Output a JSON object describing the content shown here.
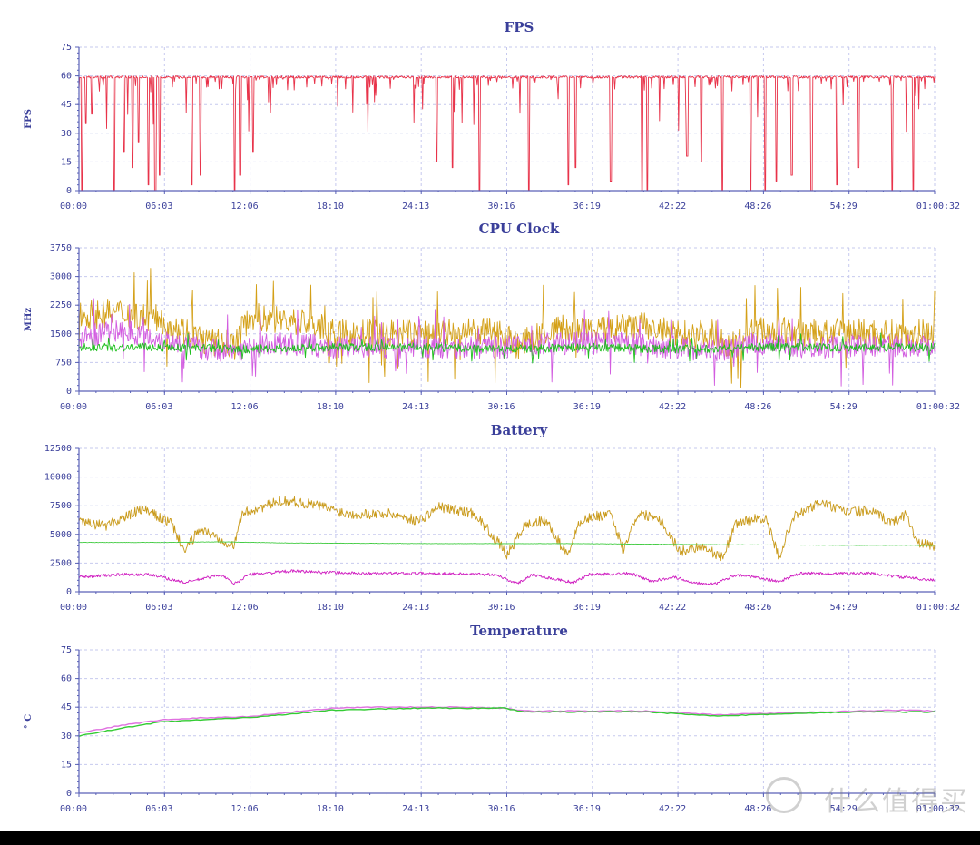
{
  "chart_data": [
    {
      "type": "line",
      "title": "FPS",
      "ylabel": "FPS",
      "ylim": [
        0,
        75
      ],
      "yticks": [
        "0",
        "15",
        "30",
        "45",
        "60",
        "75"
      ],
      "xticks": [
        "00:00",
        "06:03",
        "12:06",
        "18:10",
        "24:13",
        "30:16",
        "36:19",
        "42:22",
        "48:26",
        "54:29",
        "01:00:32"
      ],
      "grid": true,
      "series": [
        {
          "color": "#e8334a",
          "baseline": 60,
          "dips": [
            {
              "t": 0.2,
              "v": 0
            },
            {
              "t": 0.5,
              "v": 35
            },
            {
              "t": 0.9,
              "v": 40
            },
            {
              "t": 2.5,
              "v": 0
            },
            {
              "t": 3.2,
              "v": 20
            },
            {
              "t": 3.8,
              "v": 12
            },
            {
              "t": 4.2,
              "v": 25
            },
            {
              "t": 4.9,
              "v": 3
            },
            {
              "t": 5.4,
              "v": 0
            },
            {
              "t": 5.7,
              "v": 8
            },
            {
              "t": 8.0,
              "v": 3
            },
            {
              "t": 8.6,
              "v": 8
            },
            {
              "t": 11.0,
              "v": 0
            },
            {
              "t": 11.4,
              "v": 8
            },
            {
              "t": 12.3,
              "v": 20
            },
            {
              "t": 25.3,
              "v": 15
            },
            {
              "t": 26.4,
              "v": 12
            },
            {
              "t": 28.3,
              "v": 0
            },
            {
              "t": 31.8,
              "v": 0
            },
            {
              "t": 34.6,
              "v": 3
            },
            {
              "t": 35.1,
              "v": 12
            },
            {
              "t": 37.6,
              "v": 5
            },
            {
              "t": 39.8,
              "v": 0
            },
            {
              "t": 40.2,
              "v": 0
            },
            {
              "t": 43.0,
              "v": 18
            },
            {
              "t": 44.0,
              "v": 15
            },
            {
              "t": 45.5,
              "v": 0
            },
            {
              "t": 47.5,
              "v": 0
            },
            {
              "t": 48.5,
              "v": 0
            },
            {
              "t": 49.3,
              "v": 5
            },
            {
              "t": 50.4,
              "v": 8
            },
            {
              "t": 51.8,
              "v": 0
            },
            {
              "t": 53.6,
              "v": 3
            },
            {
              "t": 55.1,
              "v": 12
            },
            {
              "t": 57.5,
              "v": 0
            },
            {
              "t": 59.0,
              "v": 0
            }
          ]
        }
      ]
    },
    {
      "type": "line",
      "title": "CPU Clock",
      "ylabel": "MHz",
      "ylim": [
        0,
        3750
      ],
      "yticks": [
        "0",
        "750",
        "1500",
        "2250",
        "3000",
        "3750"
      ],
      "xticks": [
        "00:00",
        "06:03",
        "12:06",
        "18:10",
        "24:13",
        "30:16",
        "36:19",
        "42:22",
        "48:26",
        "54:29",
        "01:00:32"
      ],
      "grid": true,
      "series": [
        {
          "color": "#d4a017",
          "points": [
            [
              0,
              2000
            ],
            [
              3,
              2050
            ],
            [
              6,
              1850
            ],
            [
              9,
              1300
            ],
            [
              11,
              1200
            ],
            [
              12,
              1950
            ],
            [
              16,
              1800
            ],
            [
              18,
              1500
            ],
            [
              24,
              1500
            ],
            [
              30,
              1550
            ],
            [
              31,
              1200
            ],
            [
              34,
              1650
            ],
            [
              36,
              1550
            ],
            [
              40,
              1700
            ],
            [
              42,
              1500
            ],
            [
              45,
              1500
            ],
            [
              46,
              1200
            ],
            [
              48,
              1600
            ],
            [
              52,
              1500
            ],
            [
              55,
              1550
            ],
            [
              58,
              1500
            ],
            [
              60.5,
              1550
            ]
          ]
        },
        {
          "color": "#d25ce0",
          "points": [
            [
              0,
              1400
            ],
            [
              3,
              1600
            ],
            [
              6,
              1350
            ],
            [
              9,
              1100
            ],
            [
              11,
              1050
            ],
            [
              14,
              1250
            ],
            [
              18,
              1150
            ],
            [
              24,
              1150
            ],
            [
              30,
              1150
            ],
            [
              34,
              1250
            ],
            [
              38,
              1250
            ],
            [
              42,
              1150
            ],
            [
              45,
              1050
            ],
            [
              48,
              1250
            ],
            [
              52,
              1150
            ],
            [
              56,
              1200
            ],
            [
              60.5,
              1200
            ]
          ]
        },
        {
          "color": "#1fbf1f",
          "points": [
            [
              0,
              1150
            ],
            [
              6,
              1150
            ],
            [
              12,
              1100
            ],
            [
              18,
              1150
            ],
            [
              24,
              1150
            ],
            [
              30,
              1100
            ],
            [
              36,
              1150
            ],
            [
              42,
              1100
            ],
            [
              48,
              1150
            ],
            [
              54,
              1150
            ],
            [
              60.5,
              1150
            ]
          ]
        }
      ]
    },
    {
      "type": "line",
      "title": "Battery",
      "ylabel": "",
      "ylim": [
        0,
        12500
      ],
      "yticks": [
        "0",
        "2500",
        "5000",
        "7500",
        "10000",
        "12500"
      ],
      "xticks": [
        "00:00",
        "06:03",
        "12:06",
        "18:10",
        "24:13",
        "30:16",
        "36:19",
        "42:22",
        "48:26",
        "54:29",
        "01:00:32"
      ],
      "grid": true,
      "series": [
        {
          "color": "#c99a1a",
          "points": [
            [
              0,
              6000
            ],
            [
              2,
              5800
            ],
            [
              4.5,
              7200
            ],
            [
              6.5,
              6000
            ],
            [
              7.5,
              3500
            ],
            [
              8.5,
              5500
            ],
            [
              11,
              4000
            ],
            [
              11.5,
              6800
            ],
            [
              14.5,
              8000
            ],
            [
              17,
              7500
            ],
            [
              19,
              6800
            ],
            [
              22,
              6800
            ],
            [
              24,
              6200
            ],
            [
              25.5,
              7400
            ],
            [
              28,
              6800
            ],
            [
              29.5,
              4500
            ],
            [
              30.3,
              3200
            ],
            [
              31.5,
              5800
            ],
            [
              33,
              6200
            ],
            [
              34.5,
              3200
            ],
            [
              35.5,
              6300
            ],
            [
              37.5,
              6800
            ],
            [
              38.5,
              3800
            ],
            [
              39.5,
              6800
            ],
            [
              41,
              6500
            ],
            [
              42.5,
              3500
            ],
            [
              44,
              4000
            ],
            [
              45.5,
              3000
            ],
            [
              46.5,
              6000
            ],
            [
              48.5,
              6500
            ],
            [
              49.5,
              3000
            ],
            [
              50.5,
              6500
            ],
            [
              52.5,
              7800
            ],
            [
              54,
              7000
            ],
            [
              56,
              7000
            ],
            [
              57.5,
              6000
            ],
            [
              58.5,
              6800
            ],
            [
              59.3,
              4200
            ],
            [
              60.5,
              4000
            ]
          ]
        },
        {
          "color": "#cf1bc0",
          "points": [
            [
              0,
              1300
            ],
            [
              3,
              1500
            ],
            [
              5,
              1500
            ],
            [
              7.5,
              800
            ],
            [
              10,
              1500
            ],
            [
              11,
              700
            ],
            [
              12,
              1500
            ],
            [
              15,
              1800
            ],
            [
              20,
              1600
            ],
            [
              25,
              1600
            ],
            [
              29.5,
              1500
            ],
            [
              31,
              700
            ],
            [
              32,
              1500
            ],
            [
              35,
              800
            ],
            [
              36,
              1500
            ],
            [
              39,
              1600
            ],
            [
              40.5,
              900
            ],
            [
              42,
              1300
            ],
            [
              43.5,
              800
            ],
            [
              45,
              700
            ],
            [
              46.5,
              1500
            ],
            [
              49.5,
              900
            ],
            [
              51,
              1600
            ],
            [
              56,
              1600
            ],
            [
              58,
              1300
            ],
            [
              60.5,
              1000
            ]
          ]
        },
        {
          "color": "#44cc44",
          "points": [
            [
              0,
              4300
            ],
            [
              6,
              4300
            ],
            [
              10,
              4350
            ],
            [
              15,
              4250
            ],
            [
              25,
              4200
            ],
            [
              35,
              4200
            ],
            [
              45,
              4100
            ],
            [
              55,
              4050
            ],
            [
              60.5,
              4050
            ]
          ]
        }
      ]
    },
    {
      "type": "line",
      "title": "Temperature",
      "ylabel": "° C",
      "ylim": [
        0,
        75
      ],
      "yticks": [
        "0",
        "15",
        "30",
        "45",
        "60",
        "75"
      ],
      "xticks": [
        "00:00",
        "06:03",
        "12:06",
        "18:10",
        "24:13",
        "30:16",
        "36:19",
        "42:22",
        "48:26",
        "54:29",
        "01:00:32"
      ],
      "grid": true,
      "series": [
        {
          "color": "#e070e0",
          "points": [
            [
              0,
              31.5
            ],
            [
              3,
              35.5
            ],
            [
              6,
              38.5
            ],
            [
              9,
              39.5
            ],
            [
              12,
              40
            ],
            [
              15,
              42.5
            ],
            [
              18,
              44.5
            ],
            [
              21,
              45
            ],
            [
              24,
              45
            ],
            [
              27,
              45
            ],
            [
              30,
              44.5
            ],
            [
              31.5,
              43
            ],
            [
              35,
              43
            ],
            [
              40,
              43
            ],
            [
              45,
              41
            ],
            [
              50,
              42
            ],
            [
              55,
              43
            ],
            [
              58,
              43.5
            ],
            [
              60.5,
              43
            ]
          ]
        },
        {
          "color": "#33cc33",
          "points": [
            [
              0,
              30
            ],
            [
              3,
              34
            ],
            [
              6,
              37.5
            ],
            [
              9,
              38.5
            ],
            [
              12,
              39.5
            ],
            [
              15,
              41.5
            ],
            [
              18,
              43.5
            ],
            [
              21,
              44
            ],
            [
              24,
              44.5
            ],
            [
              27,
              44.5
            ],
            [
              30,
              44.5
            ],
            [
              31.5,
              42.5
            ],
            [
              35,
              42.5
            ],
            [
              40,
              42.5
            ],
            [
              45,
              40.5
            ],
            [
              50,
              41.5
            ],
            [
              55,
              42.5
            ],
            [
              58,
              42.5
            ],
            [
              60.5,
              42.5
            ]
          ]
        }
      ]
    }
  ],
  "watermark": {
    "text": "什么值得买"
  },
  "colors": {
    "axis": "#5a62b8",
    "grid": "#c6c9ee",
    "text": "#3a3f9a",
    "background": "#ffffff"
  }
}
